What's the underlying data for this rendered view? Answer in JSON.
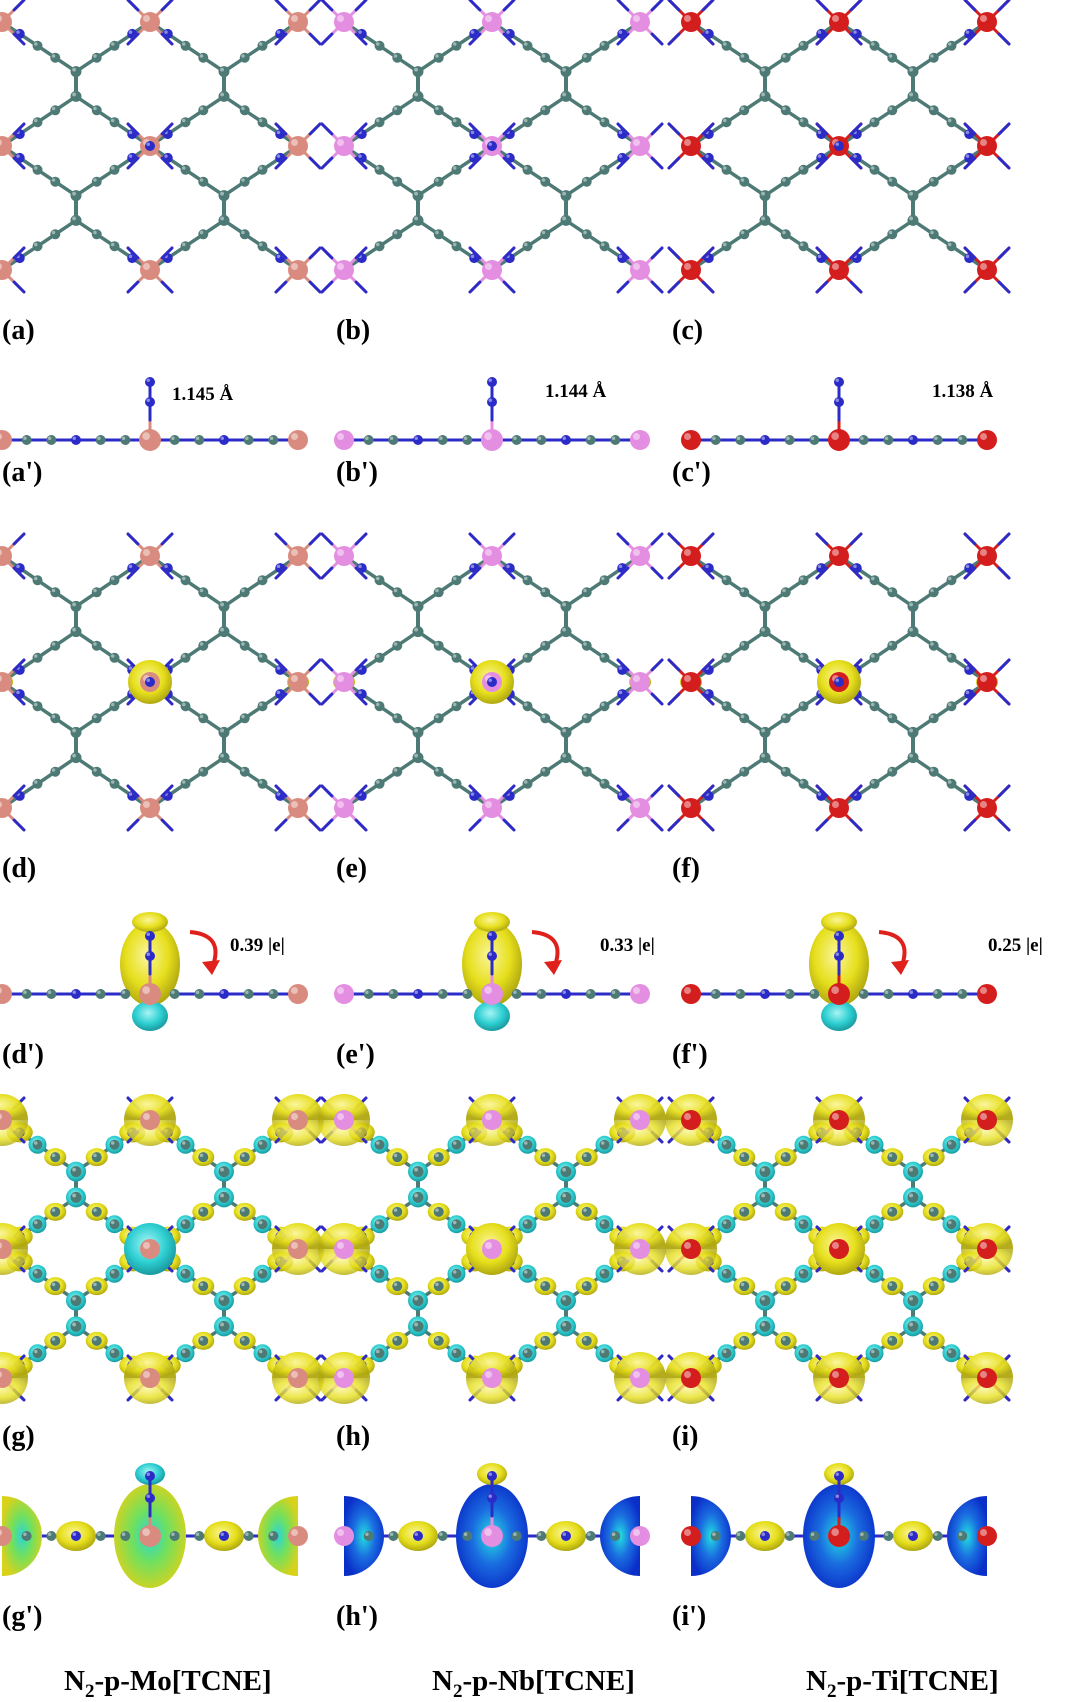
{
  "panel_labels": {
    "row1": [
      "(a)",
      "(b)",
      "(c)"
    ],
    "row2": [
      "(a')",
      "(b')",
      "(c')"
    ],
    "row3": [
      "(d)",
      "(e)",
      "(f)"
    ],
    "row4": [
      "(d')",
      "(e')",
      "(f')"
    ],
    "row5": [
      "(g)",
      "(h)",
      "(i)"
    ],
    "row6": [
      "(g')",
      "(h')",
      "(i')"
    ]
  },
  "bond_lengths": [
    "1.145 Å",
    "1.144 Å",
    "1.138 Å"
  ],
  "charge_transfer": [
    "0.39 |e|",
    "0.33 |e|",
    "0.25 |e|"
  ],
  "compounds": [
    {
      "prefix": "N",
      "sub": "2",
      "suffix": "-p-Mo[TCNE]",
      "metal_color": "#d98b7f"
    },
    {
      "prefix": "N",
      "sub": "2",
      "suffix": "-p-Nb[TCNE]",
      "metal_color": "#e38ee0"
    },
    {
      "prefix": "N",
      "sub": "2",
      "suffix": "-p-Ti[TCNE]",
      "metal_color": "#d41e1e"
    }
  ],
  "atom_colors": {
    "carbon": "#4e7a76",
    "nitrogen": "#2b2bc7",
    "charge_accumulation": "#e6e020",
    "charge_depletion": "#2ed6d6"
  }
}
